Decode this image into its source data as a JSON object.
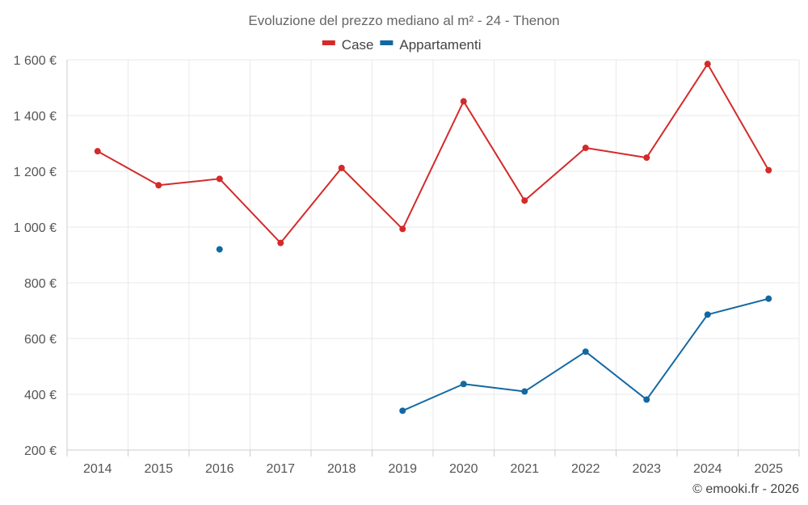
{
  "chart_data": {
    "type": "line",
    "title": "Evoluzione del prezzo mediano al m² - 24 - Thenon",
    "categories": [
      "2014",
      "2015",
      "2016",
      "2017",
      "2018",
      "2019",
      "2020",
      "2021",
      "2022",
      "2023",
      "2024",
      "2025"
    ],
    "series": [
      {
        "name": "Case",
        "color": "#d42a2a",
        "values": [
          1272,
          1150,
          1173,
          943,
          1212,
          993,
          1451,
          1095,
          1284,
          1249,
          1585,
          1204
        ]
      },
      {
        "name": "Appartamenti",
        "color": "#1368a1",
        "values": [
          null,
          null,
          920,
          null,
          null,
          341,
          437,
          410,
          553,
          381,
          686,
          743
        ]
      }
    ],
    "ylim": [
      200,
      1600
    ],
    "yticks": [
      200,
      400,
      600,
      800,
      1000,
      1200,
      1400,
      1600
    ],
    "ytick_labels": [
      "200 €",
      "400 €",
      "600 €",
      "800 €",
      "1 000 €",
      "1 200 €",
      "1 400 €",
      "1 600 €"
    ],
    "legend_position": "top-center",
    "grid": true
  },
  "credit": "© emooki.fr - 2026"
}
